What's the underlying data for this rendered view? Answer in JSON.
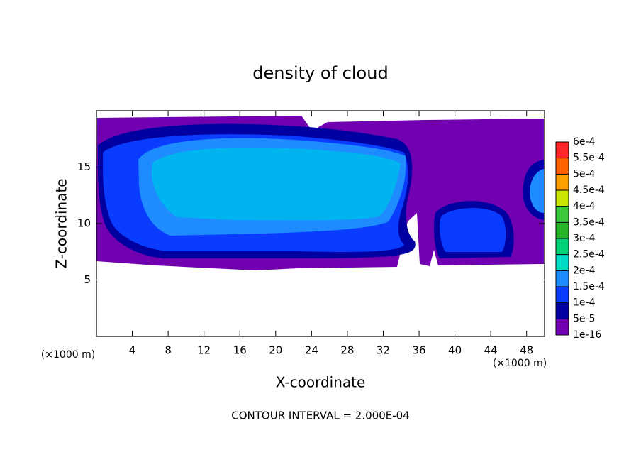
{
  "chart_data": {
    "type": "contour",
    "title": "density of cloud",
    "xlabel": "X-coordinate",
    "ylabel": "Z-coordinate",
    "x_unit": "(×1000 m)",
    "y_unit": "(×1000 m)",
    "annotation": "CONTOUR INTERVAL = 2.000E-04",
    "xlim": [
      0,
      50
    ],
    "ylim": [
      0,
      20
    ],
    "xticks": [
      4,
      8,
      12,
      16,
      20,
      24,
      28,
      32,
      36,
      40,
      44,
      48
    ],
    "yticks": [
      5,
      10,
      15
    ],
    "colorbar": {
      "levels": [
        {
          "value": 1e-16,
          "label": "1e-16"
        },
        {
          "value": 5e-05,
          "label": "5e-5"
        },
        {
          "value": 0.0001,
          "label": "1e-4"
        },
        {
          "value": 0.00015,
          "label": "1.5e-4"
        },
        {
          "value": 0.0002,
          "label": "2e-4"
        },
        {
          "value": 0.00025,
          "label": "2.5e-4"
        },
        {
          "value": 0.0003,
          "label": "3e-4"
        },
        {
          "value": 0.00035,
          "label": "3.5e-4"
        },
        {
          "value": 0.0004,
          "label": "4e-4"
        },
        {
          "value": 0.00045,
          "label": "4.5e-4"
        },
        {
          "value": 0.0005,
          "label": "5e-4"
        },
        {
          "value": 0.00055,
          "label": "5.5e-4"
        },
        {
          "value": 0.0006,
          "label": "6e-4"
        }
      ],
      "colors": [
        "#7000b0",
        "#0000a0",
        "#0a3cff",
        "#1e8cff",
        "#00dcc8",
        "#00d278",
        "#28b428",
        "#3cc83c",
        "#c8e600",
        "#ffa000",
        "#ff6400",
        "#ff2828"
      ]
    }
  }
}
